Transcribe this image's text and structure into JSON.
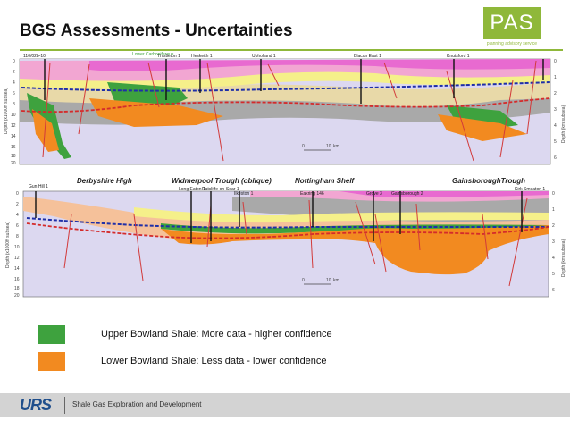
{
  "slide": {
    "title": "BGS Assessments - Uncertainties",
    "logo": {
      "text": "PAS",
      "subtitle": "planning advisory service"
    }
  },
  "colors": {
    "accent": "#8fb83a",
    "upper_shale": "#3ea23e",
    "lower_shale": "#f28a20",
    "dashed_blue": "#1f2fa8",
    "dashed_red": "#d42b2b",
    "fault": "#d23a3a"
  },
  "section1": {
    "wells": [
      "110/02b-10",
      "Thistleton 1",
      "Heskeith 1",
      "Upholland 1",
      "Blacon East 1",
      "Knutsford 1"
    ],
    "green_label": "Lower Carboniferous",
    "left_axis_label": "Depth (x1000ft subsea)",
    "right_axis_label": "Depth (km subsea)",
    "left_ticks": [
      "0",
      "2",
      "4",
      "6",
      "8",
      "10",
      "12",
      "14",
      "16",
      "18",
      "20"
    ],
    "right_ticks": [
      "0",
      "1",
      "2",
      "3",
      "4",
      "5",
      "6"
    ],
    "scale": {
      "zero": "0",
      "ten": "10",
      "unit": "km"
    }
  },
  "section2": {
    "regions": [
      "Derbyshire High",
      "Widmerpool Trough (oblique)",
      "Nottingham Shelf",
      "GainsboroughTrough"
    ],
    "wells": [
      "Gun Hill 1",
      "Long Eaton 1",
      "Ratcliffe-on-Soar 1",
      "Ilkeston 1",
      "Eakring 146",
      "Grove 3",
      "Gainsborough 2",
      "Kirk Smeaton 1"
    ],
    "left_axis_label": "Depth (x1000ft subsea)",
    "right_axis_label": "Depth (km subsea)",
    "left_ticks": [
      "0",
      "2",
      "4",
      "6",
      "8",
      "10",
      "12",
      "14",
      "16",
      "18",
      "20"
    ],
    "right_ticks": [
      "0",
      "1",
      "2",
      "3",
      "4",
      "5",
      "6"
    ],
    "scale": {
      "zero": "0",
      "ten": "10",
      "unit": "km"
    }
  },
  "legend": [
    {
      "text": "Upper Bowland Shale: More data - higher confidence",
      "color": "#3ea23e"
    },
    {
      "text": "Lower Bowland Shale: Less data - lower confidence",
      "color": "#f28a20"
    }
  ],
  "footer": {
    "logo": "URS",
    "text": "Shale Gas Exploration and Development"
  }
}
